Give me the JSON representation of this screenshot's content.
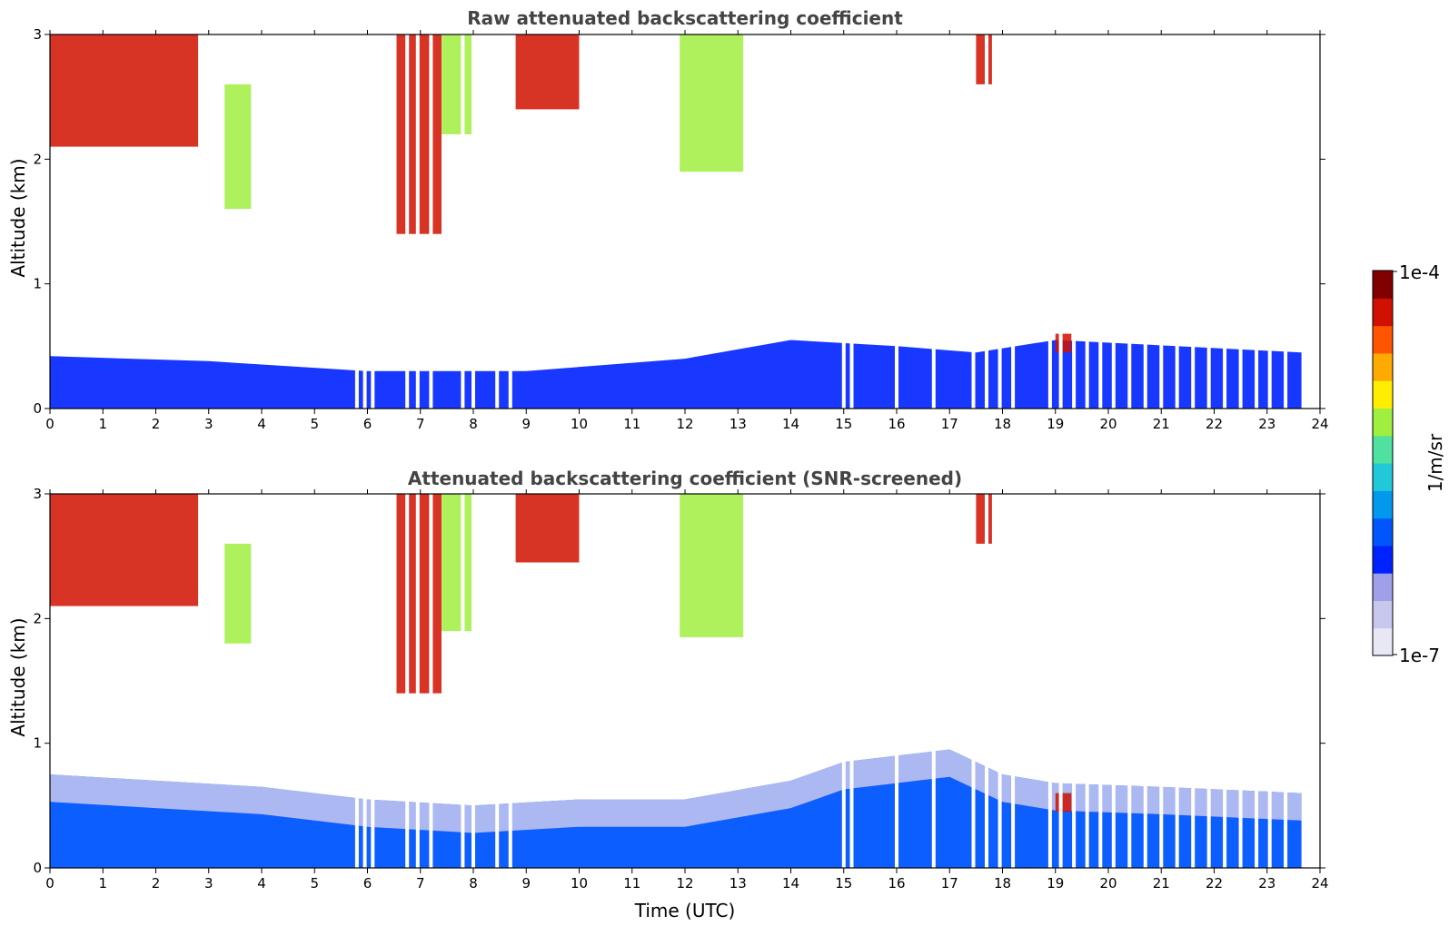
{
  "chart_data": [
    {
      "type": "heatmap",
      "title": "Raw attenuated backscattering coefficient",
      "xlabel": "",
      "ylabel": "Altitude (km)",
      "xlim": [
        0,
        24
      ],
      "ylim": [
        0,
        3
      ],
      "xticks": [
        "0",
        "1",
        "2",
        "3",
        "4",
        "5",
        "6",
        "7",
        "8",
        "9",
        "10",
        "11",
        "12",
        "13",
        "14",
        "15",
        "16",
        "17",
        "18",
        "19",
        "20",
        "21",
        "22",
        "23",
        "24"
      ],
      "yticks": [
        "0",
        "1",
        "2",
        "3"
      ],
      "data_end_hour": 23.65,
      "boundary_layer_top_km": [
        [
          0,
          0.42
        ],
        [
          3,
          0.38
        ],
        [
          6,
          0.3
        ],
        [
          9,
          0.3
        ],
        [
          12,
          0.4
        ],
        [
          14,
          0.55
        ],
        [
          16,
          0.5
        ],
        [
          17.5,
          0.45
        ],
        [
          19,
          0.55
        ],
        [
          23.65,
          0.45
        ]
      ],
      "features": [
        {
          "x0": 0.0,
          "x1": 2.8,
          "y0": 2.1,
          "y1": 3.0,
          "level": "high"
        },
        {
          "x0": 3.3,
          "x1": 3.8,
          "y0": 1.6,
          "y1": 2.6,
          "level": "medium"
        },
        {
          "x0": 6.55,
          "x1": 7.4,
          "y0": 1.4,
          "y1": 3.0,
          "level": "high"
        },
        {
          "x0": 7.4,
          "x1": 8.0,
          "y0": 2.2,
          "y1": 3.0,
          "level": "medium"
        },
        {
          "x0": 8.8,
          "x1": 10.0,
          "y0": 2.4,
          "y1": 3.0,
          "level": "high"
        },
        {
          "x0": 11.9,
          "x1": 13.1,
          "y0": 1.9,
          "y1": 3.0,
          "level": "medium"
        },
        {
          "x0": 17.5,
          "x1": 17.8,
          "y0": 2.6,
          "y1": 3.0,
          "level": "high"
        },
        {
          "x0": 19.0,
          "x1": 19.3,
          "y0": 0.45,
          "y1": 0.6,
          "level": "high"
        }
      ],
      "missing_columns_hours": [
        5.8,
        5.95,
        6.1,
        6.75,
        6.95,
        7.2,
        7.8,
        8.0,
        8.45,
        8.7,
        15.0,
        15.15,
        16.0,
        16.7,
        17.45,
        17.7,
        17.95,
        18.2,
        18.9,
        19.1,
        19.35,
        19.6,
        19.85,
        20.1,
        20.4,
        20.7,
        21.0,
        21.3,
        21.6,
        21.9,
        22.2,
        22.5,
        22.8,
        23.05,
        23.35
      ]
    },
    {
      "type": "heatmap",
      "title": "Attenuated backscattering coefficient (SNR-screened)",
      "xlabel": "Time (UTC)",
      "ylabel": "Altitude (km)",
      "xlim": [
        0,
        24
      ],
      "ylim": [
        0,
        3
      ],
      "xticks": [
        "0",
        "1",
        "2",
        "3",
        "4",
        "5",
        "6",
        "7",
        "8",
        "9",
        "10",
        "11",
        "12",
        "13",
        "14",
        "15",
        "16",
        "17",
        "18",
        "19",
        "20",
        "21",
        "22",
        "23",
        "24"
      ],
      "yticks": [
        "0",
        "1",
        "2",
        "3"
      ],
      "data_end_hour": 23.65,
      "boundary_layer_top_km": [
        [
          0,
          0.75
        ],
        [
          2,
          0.7
        ],
        [
          4,
          0.65
        ],
        [
          6,
          0.55
        ],
        [
          8,
          0.5
        ],
        [
          10,
          0.55
        ],
        [
          12,
          0.55
        ],
        [
          14,
          0.7
        ],
        [
          15,
          0.85
        ],
        [
          16,
          0.9
        ],
        [
          17,
          0.95
        ],
        [
          18,
          0.75
        ],
        [
          19,
          0.68
        ],
        [
          21,
          0.65
        ],
        [
          23.65,
          0.6
        ]
      ],
      "features": [
        {
          "x0": 0.0,
          "x1": 2.8,
          "y0": 2.1,
          "y1": 3.0,
          "level": "high"
        },
        {
          "x0": 3.3,
          "x1": 3.8,
          "y0": 1.8,
          "y1": 2.6,
          "level": "medium"
        },
        {
          "x0": 6.55,
          "x1": 7.4,
          "y0": 1.4,
          "y1": 3.0,
          "level": "high"
        },
        {
          "x0": 7.4,
          "x1": 8.0,
          "y0": 1.9,
          "y1": 3.0,
          "level": "medium"
        },
        {
          "x0": 8.8,
          "x1": 10.0,
          "y0": 2.45,
          "y1": 3.0,
          "level": "high"
        },
        {
          "x0": 11.9,
          "x1": 13.1,
          "y0": 1.85,
          "y1": 3.0,
          "level": "medium"
        },
        {
          "x0": 17.5,
          "x1": 17.8,
          "y0": 2.6,
          "y1": 3.0,
          "level": "high"
        },
        {
          "x0": 19.0,
          "x1": 19.3,
          "y0": 0.45,
          "y1": 0.6,
          "level": "high"
        }
      ],
      "missing_columns_hours": [
        5.8,
        5.95,
        6.1,
        6.75,
        6.95,
        7.2,
        7.8,
        8.0,
        8.45,
        8.7,
        15.0,
        15.15,
        16.0,
        16.7,
        17.45,
        17.7,
        17.95,
        18.2,
        18.9,
        19.1,
        19.35,
        19.6,
        19.85,
        20.1,
        20.4,
        20.7,
        21.0,
        21.3,
        21.6,
        21.9,
        22.2,
        22.5,
        22.8,
        23.05,
        23.35
      ]
    }
  ],
  "colorbar": {
    "label": "1/m/sr",
    "max_label": "1e-4",
    "min_label": "1e-7",
    "scale": "log",
    "colors": [
      "#e8e8f5",
      "#c8c8ef",
      "#a0a0ea",
      "#0022ff",
      "#0055ff",
      "#0099ee",
      "#20c8d8",
      "#50e0a0",
      "#a0ef40",
      "#ffee00",
      "#ffaa00",
      "#ff5500",
      "#d01000",
      "#800000"
    ]
  }
}
